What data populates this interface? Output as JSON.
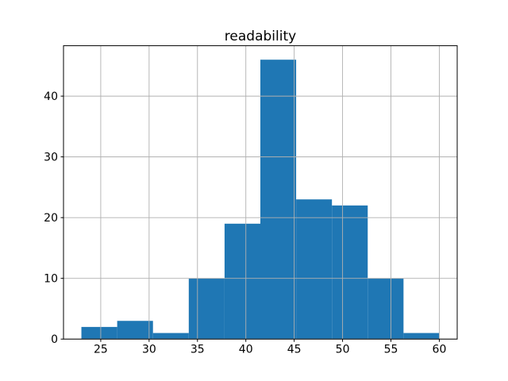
{
  "chart_data": {
    "type": "bar",
    "chart_kind": "histogram",
    "title": "readability",
    "xlabel": "",
    "ylabel": "",
    "bin_edges": [
      23.0,
      26.7,
      30.4,
      34.1,
      37.8,
      41.5,
      45.2,
      48.9,
      52.6,
      56.3,
      60.0
    ],
    "counts": [
      2,
      3,
      1,
      10,
      19,
      46,
      23,
      22,
      10,
      1
    ],
    "xticks": [
      25,
      30,
      35,
      40,
      45,
      50,
      55,
      60
    ],
    "yticks": [
      0,
      10,
      20,
      30,
      40
    ],
    "xlim": [
      21.15,
      61.85
    ],
    "ylim": [
      0,
      48.3
    ],
    "grid": true,
    "legend": "none",
    "bar_color": "#1f77b4",
    "grid_color": "#b0b0b0",
    "spine_color": "#000000",
    "background_color": "#ffffff"
  }
}
